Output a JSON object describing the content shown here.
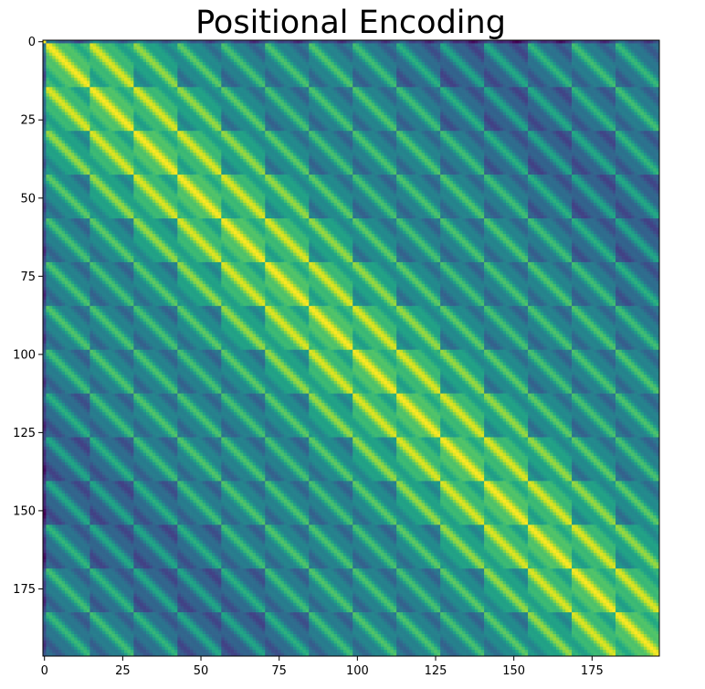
{
  "chart_data": {
    "type": "heatmap",
    "title": "Positional Encoding",
    "xlabel": "",
    "ylabel": "",
    "rows": 197,
    "cols": 197,
    "xlim": [
      -0.5,
      196.5
    ],
    "ylim": [
      196.5,
      -0.5
    ],
    "x_ticks": [
      0,
      25,
      50,
      75,
      100,
      125,
      150,
      175
    ],
    "y_ticks": [
      0,
      25,
      50,
      75,
      100,
      125,
      150,
      175
    ],
    "colormap": "viridis",
    "colors": [
      "#440154",
      "#3b528b",
      "#21918c",
      "#5ec962",
      "#fde725"
    ],
    "pattern": "cosine similarity of 2D positional embeddings: first row/column constant (cls token), remaining 196 tokens form a 14x14 grid; diagonal is maximal, bands of high similarity along offsets of 14",
    "grid": false,
    "legend": "none"
  }
}
